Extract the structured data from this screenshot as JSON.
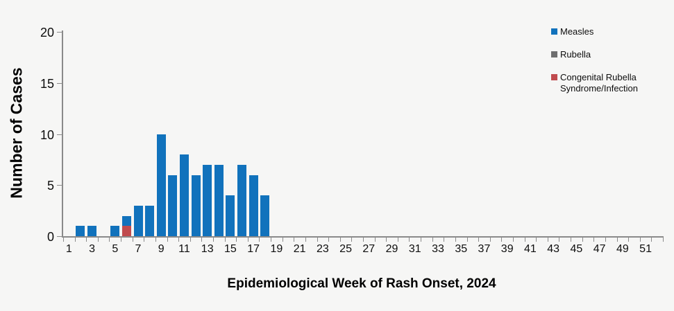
{
  "colors": {
    "background": "#F6F6F5",
    "axis": "#8A8A8A",
    "text": "#0D0D0D",
    "measles_blue": "#1172BC",
    "rubella_gray": "#6F6F6F",
    "crs_red": "#C04B4E"
  },
  "chart_data": {
    "type": "bar",
    "stacked": true,
    "title": "",
    "xlabel": "Epidemiological Week of Rash Onset, 2024",
    "ylabel": "Number of Cases",
    "weeks_range": [
      1,
      52
    ],
    "x_tick_labels": [
      1,
      3,
      5,
      7,
      9,
      11,
      13,
      15,
      17,
      19,
      21,
      23,
      25,
      27,
      29,
      31,
      33,
      35,
      37,
      39,
      41,
      43,
      45,
      47,
      49,
      51
    ],
    "ylim": [
      0,
      20
    ],
    "y_ticks": [
      0,
      5,
      10,
      15,
      20
    ],
    "grid": false,
    "legend_position": "top-right",
    "series": [
      {
        "name": "Measles",
        "color": "#1172BC",
        "cases_by_week": {
          "2": 1,
          "3": 1,
          "5": 1,
          "6": 1,
          "7": 3,
          "8": 3,
          "9": 10,
          "10": 6,
          "11": 8,
          "12": 6,
          "13": 7,
          "14": 7,
          "15": 4,
          "16": 7,
          "17": 6,
          "18": 4
        }
      },
      {
        "name": "Rubella",
        "color": "#6F6F6F",
        "cases_by_week": {}
      },
      {
        "name": "Congenital Rubella Syndrome/Infection",
        "color": "#C04B4E",
        "cases_by_week": {
          "6": 1
        }
      }
    ],
    "stack_order_bottom_to_top": [
      2,
      1,
      0
    ]
  }
}
